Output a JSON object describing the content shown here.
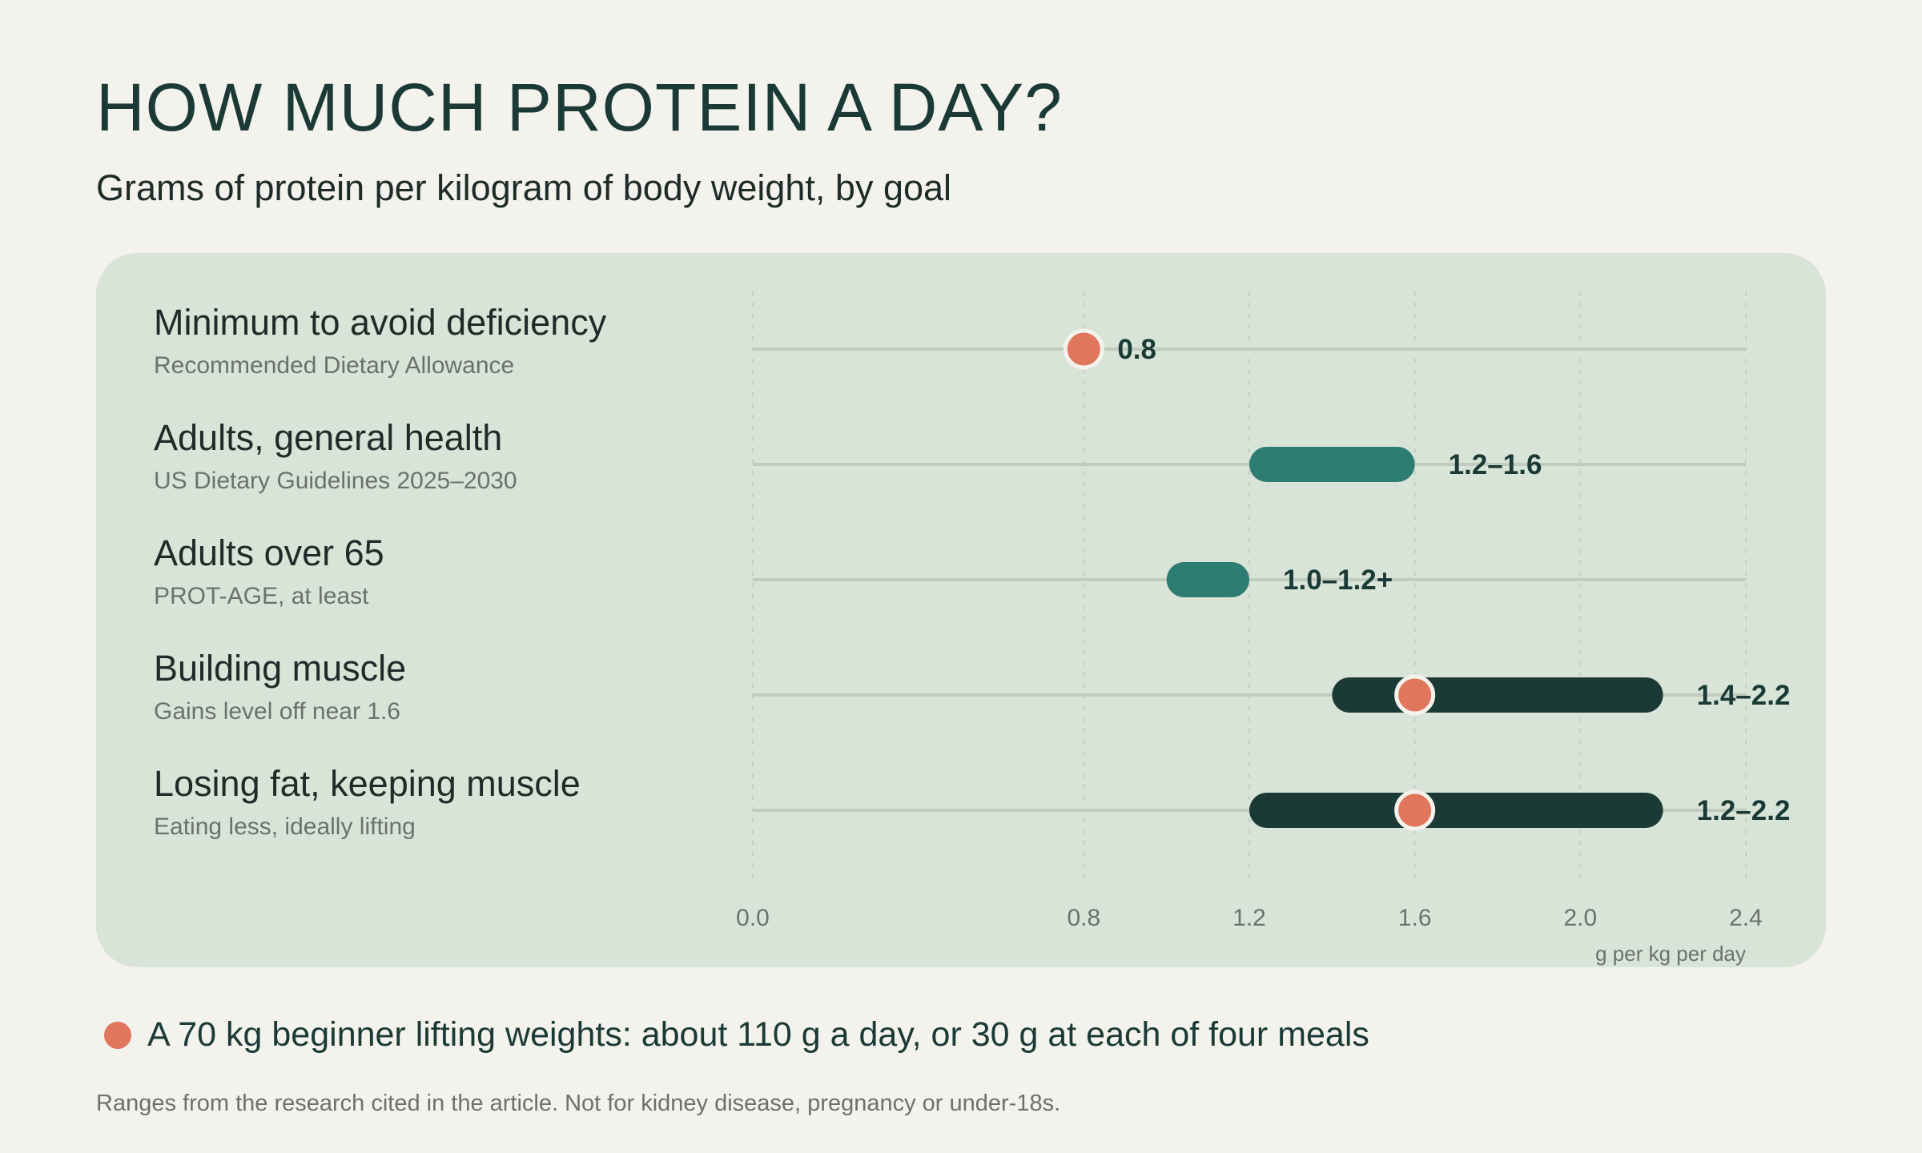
{
  "title": "HOW MUCH PROTEIN A DAY?",
  "subtitle": "Grams of protein per kilogram of body weight, by goal",
  "colors": {
    "background": "#f4f2ec",
    "panel": "#d9e4d8",
    "teal_bar": "#2e7d72",
    "dark_bar": "#1b3a36",
    "marker": "#e0775d",
    "track": "#c0ccbf",
    "grid": "#c3cec2"
  },
  "chart_data": {
    "type": "range-bar",
    "xlim": [
      0.0,
      2.4
    ],
    "xticks": [
      0.0,
      0.8,
      1.2,
      1.6,
      2.0,
      2.4
    ],
    "tick_labels": [
      "0.0",
      "0.8",
      "1.2",
      "1.6",
      "2.0",
      "2.4"
    ],
    "xlabel": "g per kg per day",
    "grid": true,
    "rows": [
      {
        "label": "Minimum to avoid deficiency",
        "sublabel": "Recommended Dietary Allowance",
        "low": null,
        "high": null,
        "marker": 0.8,
        "bar_color": "none",
        "value_label": "0.8"
      },
      {
        "label": "Adults, general health",
        "sublabel": "US Dietary Guidelines 2025–2030",
        "low": 1.2,
        "high": 1.6,
        "marker": null,
        "bar_color": "teal",
        "value_label": "1.2–1.6"
      },
      {
        "label": "Adults over 65",
        "sublabel": "PROT-AGE, at least",
        "low": 1.0,
        "high": 1.2,
        "marker": null,
        "bar_color": "teal",
        "value_label": "1.0–1.2+"
      },
      {
        "label": "Building muscle",
        "sublabel": "Gains level off near 1.6",
        "low": 1.4,
        "high": 2.2,
        "marker": 1.6,
        "bar_color": "dark",
        "value_label": "1.4–2.2"
      },
      {
        "label": "Losing fat, keeping muscle",
        "sublabel": "Eating less, ideally lifting",
        "low": 1.2,
        "high": 2.2,
        "marker": 1.6,
        "bar_color": "dark",
        "value_label": "1.2–2.2"
      }
    ]
  },
  "note": {
    "text": "A 70 kg beginner lifting weights: about 110 g a day, or 30 g at each of four meals",
    "icon": "marker-dot-icon"
  },
  "footer": "Ranges from the research cited in the article. Not for kidney disease, pregnancy or under-18s."
}
